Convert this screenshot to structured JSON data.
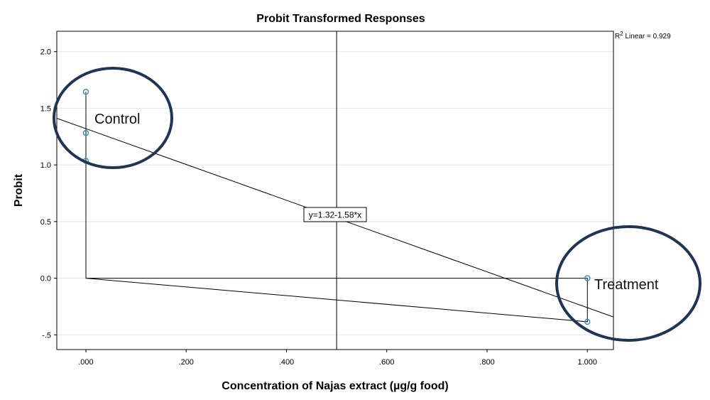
{
  "chart_data": {
    "type": "scatter",
    "title": "Probit Transformed Responses",
    "xlabel": "Concentration of Najas extract (µg/g food)",
    "ylabel": "Probit",
    "xlim": [
      -0.058,
      1.052
    ],
    "ylim": [
      -0.63,
      2.18
    ],
    "x_ticks": [
      0.0,
      0.2,
      0.4,
      0.6,
      0.8,
      1.0
    ],
    "x_tick_labels": [
      ".000",
      ".200",
      ".400",
      ".600",
      ".800",
      "1.000"
    ],
    "y_ticks": [
      -0.5,
      0.0,
      0.5,
      1.0,
      1.5,
      2.0
    ],
    "y_tick_labels": [
      "-.5",
      "0.0",
      "0.5",
      "1.0",
      "1.5",
      "2.0"
    ],
    "grid": "horizontal",
    "points": [
      {
        "x": 0.0,
        "y": 1.645
      },
      {
        "x": 0.0,
        "y": 1.282
      },
      {
        "x": 0.0,
        "y": 1.036
      },
      {
        "x": 1.0,
        "y": 0.0
      },
      {
        "x": 1.0,
        "y": -0.385
      }
    ],
    "connector_path": [
      {
        "x": 0.0,
        "y": 1.645
      },
      {
        "x": 0.0,
        "y": 0.0
      },
      {
        "x": 1.0,
        "y": 0.0
      },
      {
        "x": 1.0,
        "y": -0.385
      },
      {
        "x": 0.0,
        "y": 0.0
      }
    ],
    "fit_line": {
      "intercept": 1.32,
      "slope": -1.58,
      "label": "y=1.32-1.58*x"
    },
    "r2_label": {
      "prefix": "R",
      "sup": "2",
      "suffix": " Linear = 0.929"
    },
    "reference_line_x": 0.5,
    "annotations": [
      {
        "text": "Control",
        "near": "top-left"
      },
      {
        "text": "Treatment",
        "near": "bottom-right"
      }
    ],
    "colors": {
      "marker": "#3d8fc9",
      "ellipse": "#1f3552",
      "line": "#000000",
      "grid": "#e4e4e4"
    }
  }
}
